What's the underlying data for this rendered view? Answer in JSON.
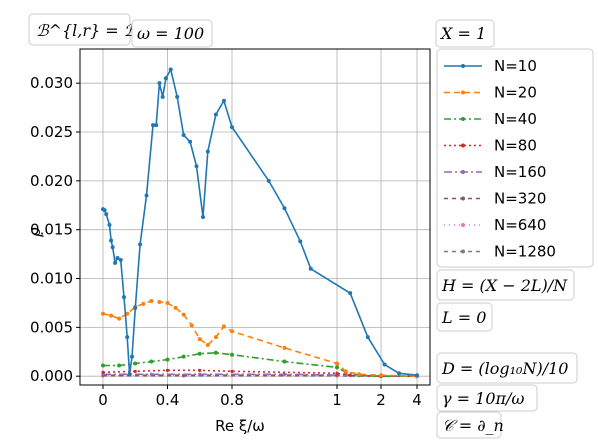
{
  "chart_data": {
    "type": "line",
    "ylabel": "ρ",
    "xlabel": "Re ξ/ω",
    "xticks": [
      "0",
      "0.4",
      "0.8",
      "1",
      "2",
      "4"
    ],
    "yticks": [
      "0.000",
      "0.005",
      "0.010",
      "0.015",
      "0.020",
      "0.025",
      "0.030"
    ],
    "ylim": [
      -0.0009,
      0.0335
    ],
    "grid": true,
    "legend_position": "right",
    "boxes": {
      "top_left": "ℬ^{l,r} = ℬ_j^{l,r}",
      "omega": "ω = 100",
      "x": "X = 1",
      "h": "H = (X − 2L)/N",
      "l": "L = 0",
      "d": "D = (log₁₀N)/10",
      "gamma": "γ = 10π/ω",
      "c": "𝒞 = ∂_n"
    },
    "series": [
      {
        "name": "N=10",
        "color": "#1f77b4",
        "dash": "",
        "marker": "dot",
        "points": [
          [
            0,
            0.0171
          ],
          [
            0.01,
            0.017
          ],
          [
            0.02,
            0.0166
          ],
          [
            0.04,
            0.0155
          ],
          [
            0.05,
            0.0139
          ],
          [
            0.06,
            0.0132
          ],
          [
            0.075,
            0.0116
          ],
          [
            0.09,
            0.0121
          ],
          [
            0.11,
            0.0119
          ],
          [
            0.13,
            0.0081
          ],
          [
            0.15,
            0.004
          ],
          [
            0.165,
            0.0002
          ],
          [
            0.18,
            0.002
          ],
          [
            0.2,
            0.007
          ],
          [
            0.23,
            0.0135
          ],
          [
            0.27,
            0.0185
          ],
          [
            0.31,
            0.0257
          ],
          [
            0.33,
            0.0257
          ],
          [
            0.35,
            0.03
          ],
          [
            0.37,
            0.0286
          ],
          [
            0.39,
            0.0305
          ],
          [
            0.42,
            0.0314
          ],
          [
            0.46,
            0.0286
          ],
          [
            0.5,
            0.0247
          ],
          [
            0.54,
            0.024
          ],
          [
            0.58,
            0.0215
          ],
          [
            0.62,
            0.0163
          ],
          [
            0.65,
            0.023
          ],
          [
            0.7,
            0.0268
          ],
          [
            0.75,
            0.0282
          ],
          [
            0.8,
            0.0255
          ],
          [
            0.87,
            0.02
          ],
          [
            0.9,
            0.0172
          ],
          [
            0.93,
            0.0138
          ],
          [
            0.95,
            0.011
          ],
          [
            1.3,
            0.0085
          ],
          [
            1.7,
            0.004
          ],
          [
            2.2,
            0.0012
          ],
          [
            3.0,
            0.0003
          ],
          [
            4.0,
            0.0001
          ]
        ]
      },
      {
        "name": "N=20",
        "color": "#ff7f0e",
        "dash": "6,4",
        "marker": "dot",
        "points": [
          [
            0,
            0.0064
          ],
          [
            0.05,
            0.0062
          ],
          [
            0.1,
            0.0059
          ],
          [
            0.15,
            0.0064
          ],
          [
            0.2,
            0.0071
          ],
          [
            0.25,
            0.0074
          ],
          [
            0.3,
            0.0077
          ],
          [
            0.35,
            0.0076
          ],
          [
            0.4,
            0.0075
          ],
          [
            0.45,
            0.007
          ],
          [
            0.5,
            0.0063
          ],
          [
            0.55,
            0.0052
          ],
          [
            0.6,
            0.0038
          ],
          [
            0.65,
            0.0032
          ],
          [
            0.7,
            0.004
          ],
          [
            0.75,
            0.0051
          ],
          [
            0.8,
            0.0046
          ],
          [
            0.9,
            0.0029
          ],
          [
            1.0,
            0.0013
          ],
          [
            1.2,
            0.0005
          ],
          [
            1.5,
            0.0002
          ],
          [
            2.0,
            0.0001
          ],
          [
            4.0,
            0.0
          ]
        ]
      },
      {
        "name": "N=40",
        "color": "#2ca02c",
        "dash": "7,3,2,3",
        "marker": "dot",
        "points": [
          [
            0,
            0.0011
          ],
          [
            0.1,
            0.0011
          ],
          [
            0.2,
            0.0013
          ],
          [
            0.3,
            0.0015
          ],
          [
            0.4,
            0.0017
          ],
          [
            0.5,
            0.002
          ],
          [
            0.6,
            0.0023
          ],
          [
            0.7,
            0.0024
          ],
          [
            0.8,
            0.0022
          ],
          [
            0.9,
            0.0015
          ],
          [
            1.0,
            0.0009
          ],
          [
            1.2,
            0.0004
          ],
          [
            1.5,
            0.0001
          ],
          [
            2.0,
            0.0
          ],
          [
            4.0,
            0.0
          ]
        ]
      },
      {
        "name": "N=80",
        "color": "#d62728",
        "dash": "2,3",
        "marker": "tri",
        "points": [
          [
            0,
            0.0004
          ],
          [
            0.2,
            0.0005
          ],
          [
            0.4,
            0.0006
          ],
          [
            0.6,
            0.0006
          ],
          [
            0.8,
            0.0005
          ],
          [
            1.0,
            0.0003
          ],
          [
            1.3,
            0.0001
          ],
          [
            2.0,
            0.0
          ],
          [
            4.0,
            0.0
          ]
        ]
      },
      {
        "name": "N=160",
        "color": "#9467bd",
        "dash": "8,3,2,3",
        "marker": "tri",
        "points": [
          [
            0,
            0.0002
          ],
          [
            0.3,
            0.0002
          ],
          [
            0.6,
            0.0002
          ],
          [
            0.9,
            0.0002
          ],
          [
            1.2,
            0.0001
          ],
          [
            2.0,
            0.0
          ],
          [
            4.0,
            0.0
          ]
        ]
      },
      {
        "name": "N=320",
        "color": "#8c564b",
        "dash": "4,4",
        "marker": "tri",
        "points": [
          [
            0,
            0.0001
          ],
          [
            0.5,
            0.0001
          ],
          [
            1.0,
            0.0001
          ],
          [
            2.0,
            0.0
          ],
          [
            4.0,
            0.0
          ]
        ]
      },
      {
        "name": "N=640",
        "color": "#e377c2",
        "dash": "1,4",
        "marker": "tri",
        "points": [
          [
            0,
            5e-05
          ],
          [
            0.5,
            5e-05
          ],
          [
            1.0,
            4e-05
          ],
          [
            2.0,
            0.0
          ],
          [
            4.0,
            0.0
          ]
        ]
      },
      {
        "name": "N=1280",
        "color": "#7f7f7f",
        "dash": "4,4",
        "marker": "tri",
        "points": [
          [
            0,
            2e-05
          ],
          [
            0.5,
            2e-05
          ],
          [
            1.0,
            2e-05
          ],
          [
            2.0,
            0.0
          ],
          [
            4.0,
            0.0
          ]
        ]
      }
    ]
  }
}
